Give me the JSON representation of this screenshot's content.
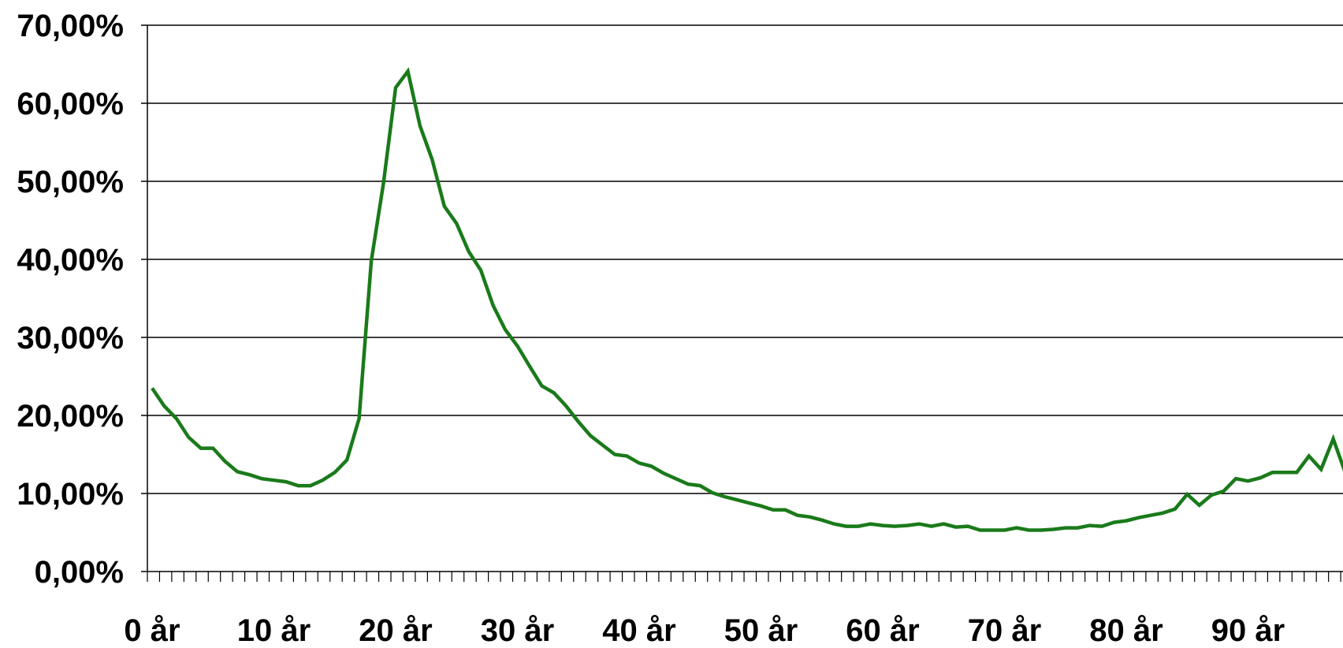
{
  "chart_data": {
    "type": "line",
    "title": "",
    "xlabel": "",
    "ylabel": "",
    "xlim": [
      0,
      98
    ],
    "ylim": [
      0,
      70
    ],
    "grid": true,
    "legend": "none",
    "line_color": "#1A7A1A",
    "y_ticks": [
      0,
      10,
      20,
      30,
      40,
      50,
      60,
      70
    ],
    "y_tick_labels": [
      "0,00%",
      "10,00%",
      "20,00%",
      "30,00%",
      "40,00%",
      "50,00%",
      "60,00%",
      "70,00%"
    ],
    "x_ticks": [
      0,
      10,
      20,
      30,
      40,
      50,
      60,
      70,
      80,
      90
    ],
    "x_tick_labels": [
      "0 år",
      "10 år",
      "20 år",
      "30 år",
      "40 år",
      "50 år",
      "60 år",
      "70 år",
      "80 år",
      "90 år"
    ],
    "series": [
      {
        "values": [
          23.5,
          21.2,
          19.6,
          17.2,
          15.8,
          15.8,
          14.1,
          12.8,
          12.4,
          11.9,
          11.7,
          11.5,
          11.0,
          11.0,
          11.7,
          12.7,
          14.3,
          19.6,
          39.8,
          49.8,
          62.0,
          64.1,
          57.1,
          52.8,
          46.8,
          44.6,
          41.0,
          38.6,
          34.1,
          31.0,
          28.9,
          26.3,
          23.8,
          22.9,
          21.2,
          19.2,
          17.4,
          16.2,
          15.0,
          14.8,
          13.9,
          13.5,
          12.6,
          11.9,
          11.2,
          11.0,
          10.1,
          9.6,
          9.2,
          8.8,
          8.4,
          7.9,
          7.9,
          7.2,
          7.0,
          6.6,
          6.1,
          5.8,
          5.8,
          6.1,
          5.9,
          5.8,
          5.9,
          6.1,
          5.8,
          6.1,
          5.7,
          5.8,
          5.3,
          5.3,
          5.3,
          5.6,
          5.3,
          5.3,
          5.4,
          5.6,
          5.6,
          5.9,
          5.8,
          6.3,
          6.5,
          6.9,
          7.2,
          7.5,
          8.0,
          9.9,
          8.5,
          9.8,
          10.3,
          11.9,
          11.6,
          12.0,
          12.7,
          12.7,
          12.7,
          14.8,
          13.1,
          17.0,
          12.6
        ]
      }
    ]
  }
}
